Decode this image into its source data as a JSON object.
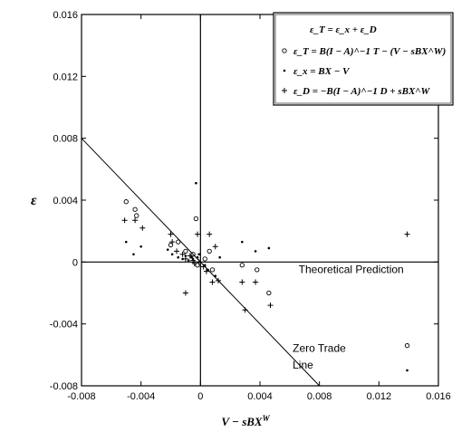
{
  "chart_data": {
    "type": "scatter",
    "xlabel": "V − sBX",
    "xlabel_sup": "W",
    "ylabel": "ε",
    "xlim": [
      -0.008,
      0.016
    ],
    "ylim": [
      -0.008,
      0.016
    ],
    "x_ticks": [
      "-0.008",
      "-0.004",
      "0",
      "0.004",
      "0.008",
      "0.012",
      "0.016"
    ],
    "y_ticks": [
      "-0.008",
      "-0.004",
      "0",
      "0.004",
      "0.008",
      "0.012",
      "0.016"
    ],
    "x_tick_values": [
      -0.008,
      -0.004,
      0,
      0.004,
      0.008,
      0.012,
      0.016
    ],
    "y_tick_values": [
      -0.008,
      -0.004,
      0,
      0.004,
      0.008,
      0.012,
      0.016
    ],
    "legend_position": "top-right",
    "legend": [
      {
        "marker": "none",
        "text": "ε_T = ε_x + ε_D"
      },
      {
        "marker": "circle",
        "text": "ε_T = B(I − A)^−1 T − (V − sBX^W)"
      },
      {
        "marker": "dot",
        "text": "ε_x = BX − V"
      },
      {
        "marker": "plus",
        "text": "ε_D = −B(I − A)^−1 D + sBX^W"
      }
    ],
    "annotations": [
      {
        "text": "Theoretical Prediction",
        "x": 0.0066,
        "y": -0.0007
      },
      {
        "text": "Zero Trade",
        "x": 0.0062,
        "y": -0.0058
      },
      {
        "text": "Line",
        "x": 0.0062,
        "y": -0.0069
      }
    ],
    "lines": [
      {
        "name": "zero-trade-line",
        "x": [
          -0.008,
          0.008
        ],
        "y": [
          0.008,
          -0.008
        ]
      },
      {
        "name": "theoretical-prediction",
        "x": [
          -0.008,
          0.016
        ],
        "y": [
          0,
          0
        ]
      },
      {
        "name": "vertical-zero",
        "x": [
          0,
          0
        ],
        "y": [
          -0.008,
          0.016
        ]
      }
    ],
    "series": [
      {
        "marker": "circle",
        "points": [
          [
            -0.005,
            0.0039
          ],
          [
            -0.0044,
            0.0034
          ],
          [
            -0.0043,
            0.003
          ],
          [
            -0.002,
            0.0011
          ],
          [
            -0.0015,
            0.0013
          ],
          [
            -0.001,
            0.0007
          ],
          [
            -0.0005,
            0.0005
          ],
          [
            -0.0003,
            0.0028
          ],
          [
            -0.0002,
            -0.0002
          ],
          [
            0.0003,
            0.0002
          ],
          [
            0.0006,
            0.0007
          ],
          [
            0.0008,
            -0.0005
          ],
          [
            0.0028,
            -0.0002
          ],
          [
            0.0038,
            -0.0005
          ],
          [
            0.0046,
            -0.002
          ],
          [
            0.0139,
            -0.0054
          ]
        ]
      },
      {
        "marker": "dot",
        "points": [
          [
            -0.005,
            0.0013
          ],
          [
            -0.0045,
            0.0005
          ],
          [
            -0.004,
            0.001
          ],
          [
            -0.0022,
            0.0008
          ],
          [
            -0.0019,
            0.0005
          ],
          [
            -0.0015,
            0.0003
          ],
          [
            -0.0012,
            0.0002
          ],
          [
            -0.001,
            0.0004
          ],
          [
            -0.0008,
            0.0001
          ],
          [
            -0.0006,
            0.0003
          ],
          [
            -0.0005,
            0.0002
          ],
          [
            -0.0003,
            0.0051
          ],
          [
            -0.0002,
            0.0003
          ],
          [
            -0.0001,
            0.0005
          ],
          [
            0.0003,
            -0.0002
          ],
          [
            0.0005,
            -0.0005
          ],
          [
            0.001,
            -0.0009
          ],
          [
            0.0013,
            0.0003
          ],
          [
            0.0028,
            0.0013
          ],
          [
            0.0037,
            0.0007
          ],
          [
            0.0046,
            0.0009
          ],
          [
            0.0139,
            -0.007
          ]
        ]
      },
      {
        "marker": "plus",
        "points": [
          [
            -0.0051,
            0.0027
          ],
          [
            -0.0044,
            0.0027
          ],
          [
            -0.0039,
            0.0022
          ],
          [
            -0.002,
            0.0018
          ],
          [
            -0.0019,
            0.0013
          ],
          [
            -0.0016,
            0.0007
          ],
          [
            -0.0012,
            0.0005
          ],
          [
            -0.001,
            0.0002
          ],
          [
            -0.0007,
            0.0004
          ],
          [
            -0.0005,
            0.0001
          ],
          [
            -0.0004,
            -0.0001
          ],
          [
            -0.0002,
            0.0018
          ],
          [
            -0.0001,
            0.0
          ],
          [
            0.0002,
            -0.0003
          ],
          [
            0.0004,
            -0.0006
          ],
          [
            0.0006,
            0.0018
          ],
          [
            0.0008,
            -0.0013
          ],
          [
            0.0012,
            -0.0012
          ],
          [
            0.001,
            0.001
          ],
          [
            0.0028,
            -0.0013
          ],
          [
            0.003,
            -0.0031
          ],
          [
            0.0037,
            -0.0013
          ],
          [
            0.0047,
            -0.0028
          ],
          [
            0.0139,
            0.0018
          ],
          [
            -0.001,
            -0.002
          ]
        ]
      }
    ]
  }
}
